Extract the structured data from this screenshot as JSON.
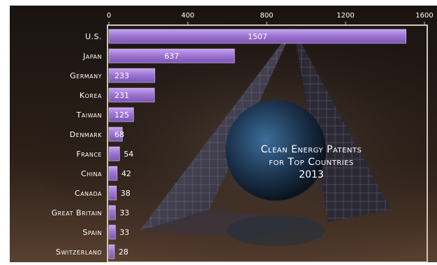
{
  "chart_data": {
    "type": "bar",
    "orientation": "horizontal",
    "title": [
      "Clean Energy Patents",
      "for Top Countries",
      "2013"
    ],
    "categories": [
      "U.S.",
      "Japan",
      "Germany",
      "Korea",
      "Taiwan",
      "Denmark",
      "France",
      "China",
      "Canada",
      "Great Britain",
      "Spain",
      "Switzerland"
    ],
    "values": [
      1507,
      637,
      233,
      231,
      125,
      68,
      54,
      42,
      38,
      33,
      33,
      28
    ],
    "xlim": [
      0,
      1600
    ],
    "xticks": [
      0,
      400,
      800,
      1200,
      1600
    ],
    "xtick_labels": [
      "0",
      "400",
      "800",
      "1200",
      "1600"
    ],
    "grid": false,
    "legend": "none",
    "colors": {
      "bar": "#9e76d4",
      "bar_light": "#c8a4f2",
      "background": "#1e1612",
      "text": "#ffffff"
    }
  }
}
